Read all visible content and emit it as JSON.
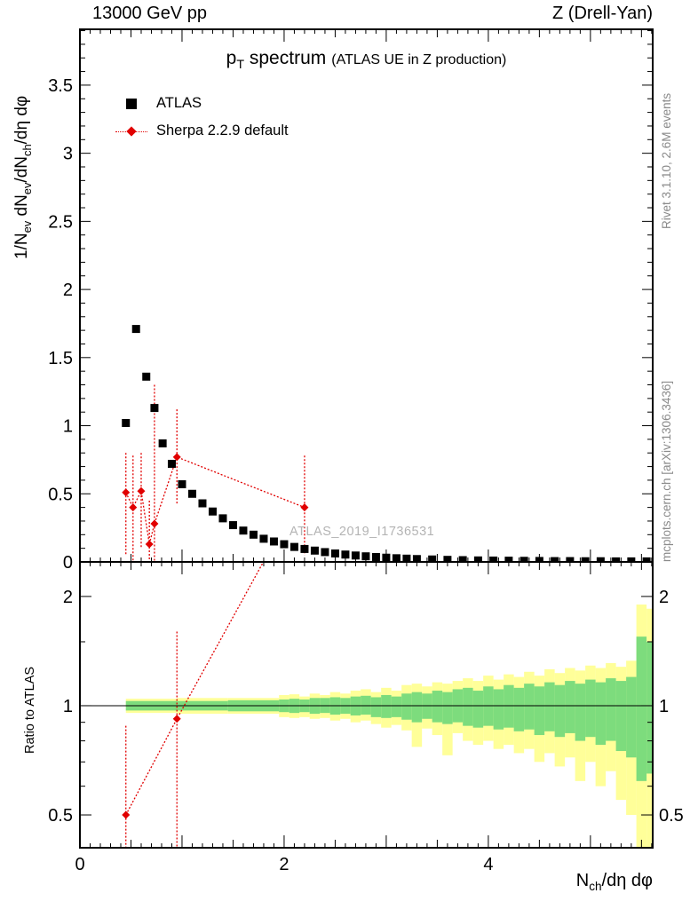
{
  "header": {
    "left": "13000 GeV pp",
    "right": "Z (Drell-Yan)"
  },
  "title": {
    "main": "p_{T} spectrum",
    "paren": "(ATLAS UE in Z production)"
  },
  "legend": {
    "atlas_label": "ATLAS",
    "sherpa_label": "Sherpa 2.2.9 default"
  },
  "watermark": "ATLAS_2019_I1736531",
  "credits": {
    "right_top": "Rivet 3.1.10,  2.6M events",
    "right_bottom": "mcplots.cern.ch [arXiv:1306.3436]"
  },
  "axes": {
    "y_top": "1/N_{ev} dN_{ev}/dN_{ch}/dη dφ",
    "y_ratio": "Ratio to ATLAS",
    "x": "N_{ch}/dη dφ"
  },
  "chart_data": {
    "type": "scatter",
    "colors": {
      "atlas": "#000000",
      "sherpa": "#e10000",
      "band_outer": "#ffff99",
      "band_inner": "#7ddc7d"
    },
    "x": {
      "lim": [
        0,
        5.61
      ],
      "ticks": [
        0,
        2,
        4
      ]
    },
    "top": {
      "ylim": [
        0,
        3.91
      ],
      "yticks": [
        0,
        0.5,
        1,
        1.5,
        2,
        2.5,
        3,
        3.5
      ],
      "atlas_points": [
        [
          0.45,
          1.02
        ],
        [
          0.55,
          1.71
        ],
        [
          0.65,
          1.36
        ],
        [
          0.73,
          1.13
        ],
        [
          0.81,
          0.87
        ],
        [
          0.9,
          0.72
        ],
        [
          1.0,
          0.57
        ],
        [
          1.1,
          0.5
        ],
        [
          1.2,
          0.43
        ],
        [
          1.3,
          0.37
        ],
        [
          1.4,
          0.32
        ],
        [
          1.5,
          0.27
        ],
        [
          1.6,
          0.23
        ],
        [
          1.7,
          0.2
        ],
        [
          1.8,
          0.17
        ],
        [
          1.9,
          0.15
        ],
        [
          2.0,
          0.13
        ],
        [
          2.1,
          0.11
        ],
        [
          2.2,
          0.095
        ],
        [
          2.3,
          0.083
        ],
        [
          2.4,
          0.072
        ],
        [
          2.5,
          0.062
        ],
        [
          2.6,
          0.054
        ],
        [
          2.7,
          0.047
        ],
        [
          2.8,
          0.041
        ],
        [
          2.9,
          0.036
        ],
        [
          3.0,
          0.031
        ],
        [
          3.1,
          0.027
        ],
        [
          3.2,
          0.024
        ],
        [
          3.3,
          0.021
        ],
        [
          3.45,
          0.018
        ],
        [
          3.6,
          0.015
        ],
        [
          3.75,
          0.013
        ],
        [
          3.9,
          0.011
        ],
        [
          4.05,
          0.01
        ],
        [
          4.2,
          0.009
        ],
        [
          4.35,
          0.008
        ],
        [
          4.5,
          0.007
        ],
        [
          4.65,
          0.006
        ],
        [
          4.8,
          0.006
        ],
        [
          4.95,
          0.005
        ],
        [
          5.1,
          0.005
        ],
        [
          5.25,
          0.004
        ],
        [
          5.4,
          0.004
        ],
        [
          5.55,
          0.004
        ]
      ],
      "sherpa_points": [
        {
          "x": 0.45,
          "y": 0.51,
          "lo": 0.05,
          "hi": 0.8
        },
        {
          "x": 0.52,
          "y": 0.4,
          "lo": 0.0,
          "hi": 0.78
        },
        {
          "x": 0.6,
          "y": 0.52,
          "lo": 0.1,
          "hi": 0.8
        },
        {
          "x": 0.68,
          "y": 0.13,
          "lo": 0.0,
          "hi": 0.45
        },
        {
          "x": 0.73,
          "y": 0.28,
          "lo": 0.0,
          "hi": 1.3
        },
        {
          "x": 0.95,
          "y": 0.77,
          "lo": 0.42,
          "hi": 1.12
        },
        {
          "x": 2.2,
          "y": 0.4,
          "lo": 0.05,
          "hi": 0.78
        }
      ]
    },
    "ratio": {
      "scale": "log",
      "ylim": [
        0.406,
        2.49
      ],
      "yticks": [
        0.5,
        1,
        2
      ],
      "yticks_minor": [
        0.6,
        0.7,
        0.8,
        0.9,
        1.5
      ],
      "sherpa_points": [
        {
          "x": 0.45,
          "y": 0.5,
          "lo": 0.28,
          "hi": 0.88
        },
        {
          "x": 0.95,
          "y": 0.92,
          "lo": 0.3,
          "hi": 1.6
        }
      ],
      "sherpa_line": [
        [
          0.45,
          0.5
        ],
        [
          0.95,
          0.92
        ],
        [
          2.2,
          4.0
        ]
      ],
      "bands": [
        [
          0.45,
          0.95,
          0.97,
          1.03,
          0.955,
          1.045
        ],
        [
          0.95,
          1.45,
          0.97,
          1.03,
          0.95,
          1.05
        ],
        [
          1.45,
          1.95,
          0.965,
          1.035,
          0.95,
          1.05
        ],
        [
          1.95,
          2.05,
          0.96,
          1.04,
          0.93,
          1.07
        ],
        [
          2.05,
          2.15,
          0.955,
          1.045,
          0.925,
          1.075
        ],
        [
          2.15,
          2.25,
          0.96,
          1.04,
          0.93,
          1.06
        ],
        [
          2.25,
          2.35,
          0.95,
          1.05,
          0.92,
          1.08
        ],
        [
          2.35,
          2.45,
          0.955,
          1.05,
          0.925,
          1.07
        ],
        [
          2.45,
          2.55,
          0.945,
          1.055,
          0.91,
          1.09
        ],
        [
          2.55,
          2.65,
          0.95,
          1.05,
          0.92,
          1.08
        ],
        [
          2.65,
          2.75,
          0.94,
          1.06,
          0.9,
          1.1
        ],
        [
          2.75,
          2.85,
          0.945,
          1.065,
          0.91,
          1.11
        ],
        [
          2.85,
          2.95,
          0.93,
          1.055,
          0.89,
          1.09
        ],
        [
          2.95,
          3.05,
          0.925,
          1.07,
          0.87,
          1.12
        ],
        [
          3.05,
          3.15,
          0.93,
          1.06,
          0.885,
          1.1
        ],
        [
          3.15,
          3.25,
          0.915,
          1.08,
          0.855,
          1.14
        ],
        [
          3.25,
          3.35,
          0.9,
          1.09,
          0.77,
          1.15
        ],
        [
          3.35,
          3.45,
          0.92,
          1.08,
          0.865,
          1.13
        ],
        [
          3.45,
          3.55,
          0.9,
          1.1,
          0.83,
          1.16
        ],
        [
          3.55,
          3.65,
          0.89,
          1.09,
          0.73,
          1.15
        ],
        [
          3.65,
          3.75,
          0.9,
          1.11,
          0.84,
          1.17
        ],
        [
          3.75,
          3.85,
          0.88,
          1.12,
          0.8,
          1.19
        ],
        [
          3.85,
          3.95,
          0.87,
          1.1,
          0.78,
          1.17
        ],
        [
          3.95,
          4.05,
          0.88,
          1.13,
          0.8,
          1.21
        ],
        [
          4.05,
          4.15,
          0.86,
          1.11,
          0.76,
          1.18
        ],
        [
          4.15,
          4.25,
          0.87,
          1.14,
          0.78,
          1.22
        ],
        [
          4.25,
          4.35,
          0.85,
          1.12,
          0.74,
          1.2
        ],
        [
          4.35,
          4.45,
          0.86,
          1.15,
          0.76,
          1.24
        ],
        [
          4.45,
          4.55,
          0.83,
          1.13,
          0.7,
          1.21
        ],
        [
          4.55,
          4.65,
          0.85,
          1.16,
          0.74,
          1.26
        ],
        [
          4.65,
          4.75,
          0.82,
          1.14,
          0.68,
          1.23
        ],
        [
          4.75,
          4.85,
          0.84,
          1.17,
          0.72,
          1.27
        ],
        [
          4.85,
          4.95,
          0.8,
          1.15,
          0.62,
          1.25
        ],
        [
          4.95,
          5.05,
          0.82,
          1.18,
          0.7,
          1.29
        ],
        [
          5.05,
          5.15,
          0.78,
          1.16,
          0.6,
          1.27
        ],
        [
          5.15,
          5.25,
          0.8,
          1.19,
          0.66,
          1.31
        ],
        [
          5.25,
          5.35,
          0.75,
          1.17,
          0.55,
          1.28
        ],
        [
          5.35,
          5.45,
          0.72,
          1.2,
          0.5,
          1.33
        ],
        [
          5.45,
          5.55,
          0.62,
          1.55,
          0.35,
          1.9
        ],
        [
          5.55,
          5.61,
          0.65,
          1.5,
          0.4,
          1.85
        ]
      ]
    }
  }
}
